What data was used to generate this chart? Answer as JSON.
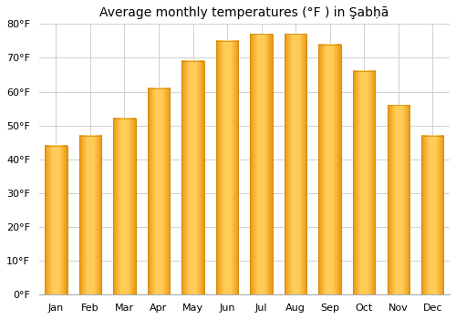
{
  "title": "Average monthly temperatures (°F ) in Şabḥā",
  "months": [
    "Jan",
    "Feb",
    "Mar",
    "Apr",
    "May",
    "Jun",
    "Jul",
    "Aug",
    "Sep",
    "Oct",
    "Nov",
    "Dec"
  ],
  "values": [
    44,
    47,
    52,
    61,
    69,
    75,
    77,
    77,
    74,
    66,
    56,
    47
  ],
  "bar_color_main": "#FFA500",
  "bar_color_light": "#FFD060",
  "ylim": [
    0,
    80
  ],
  "yticks": [
    0,
    10,
    20,
    30,
    40,
    50,
    60,
    70,
    80
  ],
  "ytick_labels": [
    "0°F",
    "10°F",
    "20°F",
    "30°F",
    "40°F",
    "50°F",
    "60°F",
    "70°F",
    "80°F"
  ],
  "background_color": "#ffffff",
  "grid_color": "#d0d0d0",
  "title_fontsize": 10,
  "tick_fontsize": 8,
  "bar_edge_color": "#cc8800"
}
